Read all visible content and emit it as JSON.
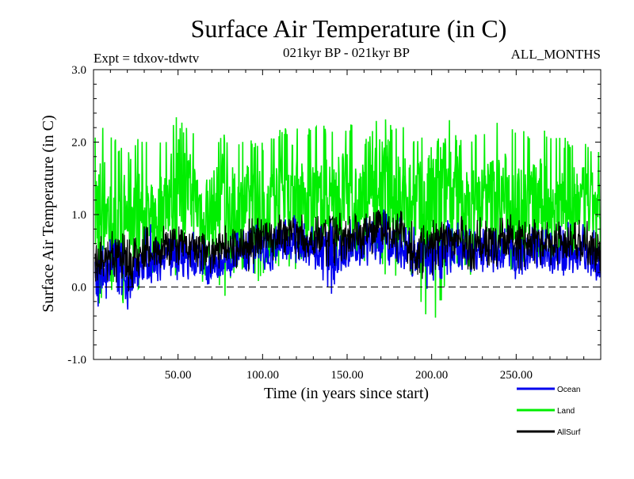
{
  "header": {
    "title": "Surface Air Temperature (in C)",
    "experiment": "Expt = tdxov-tdwtv",
    "period": "021kyr BP - 021kyr BP",
    "months": "ALL_MONTHS"
  },
  "chart_data": {
    "type": "line",
    "title": "Surface Air Temperature (in C)",
    "xlabel": "Time (in years since start)",
    "ylabel": "Surface Air Temperature (in C)",
    "xlim": [
      0,
      300
    ],
    "ylim": [
      -1.0,
      3.0
    ],
    "x_ticks": [
      50,
      100,
      150,
      200,
      250
    ],
    "x_tick_labels": [
      "50.00",
      "100.00",
      "150.00",
      "200.00",
      "250.00"
    ],
    "y_ticks": [
      -1.0,
      0.0,
      1.0,
      2.0,
      3.0
    ],
    "y_tick_labels": [
      "-1.0",
      "0.0",
      "1.0",
      "2.0",
      "3.0"
    ],
    "reference_line": 0.0,
    "grid": false,
    "legend_position": "bottom-right",
    "series": [
      {
        "name": "Land",
        "color": "#00ee00",
        "x": [
          1,
          7,
          14,
          21,
          28,
          35,
          42,
          49,
          56,
          63,
          70,
          77,
          84,
          91,
          98,
          105,
          112,
          119,
          126,
          133,
          140,
          147,
          154,
          161,
          168,
          175,
          182,
          189,
          196,
          203,
          210,
          217,
          224,
          231,
          238,
          245,
          252,
          259,
          266,
          273,
          280,
          287,
          294,
          300
        ],
        "y": [
          1.05,
          1.15,
          0.55,
          1.1,
          1.0,
          0.75,
          1.2,
          1.45,
          1.3,
          1.1,
          1.05,
          1.25,
          1.0,
          1.15,
          1.05,
          1.2,
          1.3,
          1.4,
          1.1,
          1.15,
          1.25,
          1.3,
          1.15,
          1.2,
          1.5,
          1.35,
          1.25,
          1.2,
          0.95,
          1.25,
          1.45,
          1.2,
          1.05,
          1.2,
          1.3,
          1.25,
          1.1,
          1.2,
          1.25,
          1.15,
          1.05,
          1.2,
          1.1,
          1.1
        ],
        "y_min": [
          -0.5,
          0.0,
          -0.1,
          -0.55,
          0.1,
          -0.25,
          0.3,
          0.1,
          0.2,
          0.0,
          0.3,
          -0.2,
          0.2,
          0.25,
          0.05,
          0.4,
          0.2,
          0.2,
          0.5,
          0.4,
          0.3,
          0.15,
          0.35,
          0.3,
          0.4,
          -0.05,
          0.3,
          0.1,
          -0.4,
          -0.55,
          0.3,
          0.25,
          0.1,
          0.4,
          0.35,
          0.2,
          0.3,
          0.3,
          0.4,
          0.35,
          0.3,
          0.4,
          0.35,
          0.4
        ],
        "y_max": [
          2.2,
          2.25,
          2.0,
          2.1,
          2.05,
          1.95,
          2.05,
          2.35,
          2.2,
          2.1,
          2.0,
          2.15,
          2.05,
          2.1,
          2.0,
          2.1,
          2.2,
          2.3,
          2.2,
          2.3,
          2.2,
          2.3,
          2.25,
          2.1,
          2.35,
          2.3,
          2.25,
          2.1,
          2.15,
          2.55,
          2.4,
          2.05,
          2.1,
          2.2,
          2.3,
          2.25,
          2.2,
          2.1,
          2.2,
          2.15,
          2.05,
          2.1,
          2.0,
          2.0
        ]
      },
      {
        "name": "Ocean",
        "color": "#0000ee",
        "x": [
          1,
          7,
          14,
          21,
          28,
          35,
          42,
          49,
          56,
          63,
          70,
          77,
          84,
          91,
          98,
          105,
          112,
          119,
          126,
          133,
          140,
          147,
          154,
          161,
          168,
          175,
          182,
          189,
          196,
          203,
          210,
          217,
          224,
          231,
          238,
          245,
          252,
          259,
          266,
          273,
          280,
          287,
          294,
          300
        ],
        "y": [
          0.1,
          0.25,
          0.4,
          0.05,
          0.3,
          0.4,
          0.45,
          0.5,
          0.35,
          0.4,
          0.3,
          0.35,
          0.45,
          0.45,
          0.5,
          0.55,
          0.6,
          0.55,
          0.5,
          0.45,
          0.55,
          0.45,
          0.55,
          0.6,
          0.7,
          0.55,
          0.55,
          0.35,
          0.4,
          0.45,
          0.55,
          0.45,
          0.4,
          0.5,
          0.45,
          0.5,
          0.4,
          0.5,
          0.45,
          0.4,
          0.45,
          0.45,
          0.4,
          0.4
        ],
        "y_min": [
          -0.4,
          -0.25,
          -0.1,
          -0.35,
          0.05,
          0.05,
          0.1,
          0.05,
          0.1,
          0.05,
          0.0,
          0.1,
          0.15,
          0.05,
          0.25,
          0.2,
          0.3,
          0.25,
          0.2,
          0.1,
          -0.15,
          0.2,
          0.3,
          0.25,
          0.3,
          0.2,
          0.25,
          0.0,
          -0.05,
          0.0,
          0.15,
          0.2,
          0.1,
          0.2,
          0.1,
          0.15,
          0.05,
          0.15,
          0.2,
          0.1,
          0.15,
          0.2,
          0.05,
          0.1
        ],
        "y_max": [
          0.5,
          0.65,
          0.7,
          0.55,
          0.75,
          0.9,
          0.8,
          0.85,
          0.75,
          0.8,
          0.7,
          0.8,
          0.75,
          0.85,
          0.9,
          0.95,
          0.95,
          1.0,
          0.9,
          0.9,
          0.95,
          1.05,
          1.0,
          1.0,
          1.1,
          1.05,
          0.95,
          0.85,
          0.8,
          0.85,
          0.95,
          0.9,
          0.85,
          0.9,
          0.85,
          0.95,
          0.9,
          0.85,
          0.85,
          0.8,
          0.9,
          0.9,
          0.85,
          0.85
        ]
      },
      {
        "name": "AllSurf",
        "color": "#000000",
        "x": [
          1,
          7,
          14,
          21,
          28,
          35,
          42,
          49,
          56,
          63,
          70,
          77,
          84,
          91,
          98,
          105,
          112,
          119,
          126,
          133,
          140,
          147,
          154,
          161,
          168,
          175,
          182,
          189,
          196,
          203,
          210,
          217,
          224,
          231,
          238,
          245,
          252,
          259,
          266,
          273,
          280,
          287,
          294,
          300
        ],
        "y": [
          0.25,
          0.4,
          0.45,
          0.3,
          0.45,
          0.5,
          0.55,
          0.65,
          0.55,
          0.55,
          0.5,
          0.55,
          0.6,
          0.6,
          0.65,
          0.7,
          0.75,
          0.75,
          0.65,
          0.65,
          0.75,
          0.7,
          0.7,
          0.75,
          0.85,
          0.75,
          0.7,
          0.55,
          0.55,
          0.6,
          0.7,
          0.6,
          0.55,
          0.65,
          0.6,
          0.65,
          0.6,
          0.65,
          0.6,
          0.6,
          0.6,
          0.6,
          0.55,
          0.55
        ],
        "y_min": [
          -0.2,
          0.0,
          0.05,
          -0.1,
          0.15,
          0.15,
          0.2,
          0.25,
          0.2,
          0.2,
          0.15,
          0.2,
          0.25,
          0.2,
          0.3,
          0.35,
          0.4,
          0.35,
          0.3,
          0.3,
          0.2,
          0.3,
          0.35,
          0.35,
          0.4,
          0.3,
          0.3,
          0.15,
          0.1,
          0.15,
          0.3,
          0.3,
          0.2,
          0.3,
          0.25,
          0.3,
          0.2,
          0.3,
          0.3,
          0.25,
          0.25,
          0.3,
          0.2,
          0.2
        ],
        "y_max": [
          0.65,
          0.75,
          0.8,
          0.7,
          0.85,
          0.9,
          0.9,
          0.95,
          0.85,
          0.9,
          0.85,
          0.9,
          0.9,
          0.95,
          1.0,
          1.0,
          1.05,
          1.05,
          1.0,
          1.0,
          1.05,
          1.1,
          1.05,
          1.05,
          1.15,
          1.1,
          1.05,
          0.95,
          0.9,
          0.95,
          1.05,
          1.0,
          0.95,
          1.0,
          0.95,
          1.05,
          0.95,
          0.95,
          0.95,
          0.9,
          0.95,
          0.95,
          0.9,
          0.9
        ]
      }
    ]
  },
  "legend": {
    "items": [
      {
        "label": "Ocean",
        "color": "#0000ee"
      },
      {
        "label": "Land",
        "color": "#00ee00"
      },
      {
        "label": "AllSurf",
        "color": "#000000"
      }
    ]
  }
}
